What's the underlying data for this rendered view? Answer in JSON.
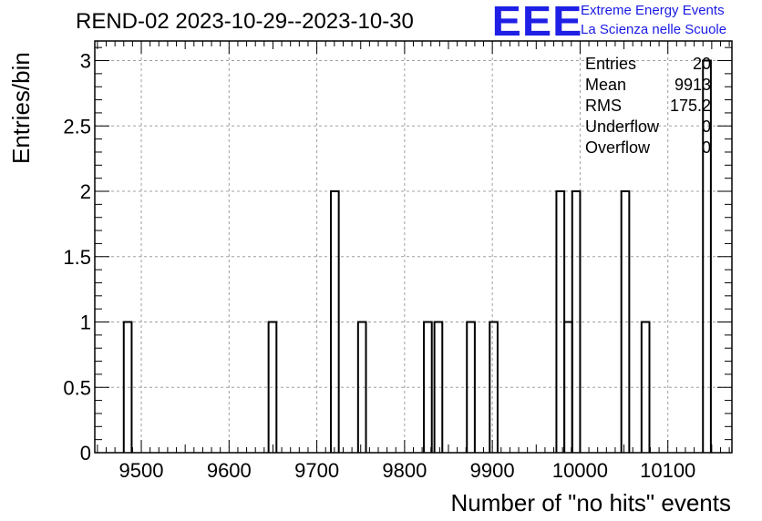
{
  "title": "REND-02 2023-10-29--2023-10-30",
  "logo": {
    "mark": "EEE",
    "line1": "Extreme Energy Events",
    "line2": "La Scienza nelle Scuole",
    "color": "#1f1fe6"
  },
  "stats": [
    {
      "label": "Entries",
      "value": "20"
    },
    {
      "label": "Mean",
      "value": "9913"
    },
    {
      "label": "RMS",
      "value": "175.2"
    },
    {
      "label": "Underflow",
      "value": "0"
    },
    {
      "label": "Overflow",
      "value": "0"
    }
  ],
  "chart_data": {
    "type": "bar",
    "title": "REND-02 2023-10-29--2023-10-30",
    "xlabel": "Number of \"no hits\" events",
    "ylabel": "Entries/bin",
    "xlim": [
      9447,
      10173
    ],
    "ylim": [
      0,
      3.15
    ],
    "grid": true,
    "xticks": [
      "9500",
      "9600",
      "9700",
      "9800",
      "9900",
      "10000",
      "10100"
    ],
    "yticks": [
      "0",
      "0.5",
      "1",
      "1.5",
      "2",
      "2.5",
      "3"
    ],
    "bins": [
      {
        "x0": 9480,
        "x1": 9489,
        "count": 1
      },
      {
        "x0": 9645,
        "x1": 9654,
        "count": 1
      },
      {
        "x0": 9716,
        "x1": 9725,
        "count": 2
      },
      {
        "x0": 9747,
        "x1": 9756,
        "count": 1
      },
      {
        "x0": 9822,
        "x1": 9831,
        "count": 1
      },
      {
        "x0": 9834,
        "x1": 9843,
        "count": 1
      },
      {
        "x0": 9871,
        "x1": 9880,
        "count": 1
      },
      {
        "x0": 9897,
        "x1": 9906,
        "count": 1
      },
      {
        "x0": 9973,
        "x1": 9982,
        "count": 2
      },
      {
        "x0": 9982,
        "x1": 9991,
        "count": 1
      },
      {
        "x0": 9991,
        "x1": 10000,
        "count": 2
      },
      {
        "x0": 10047,
        "x1": 10056,
        "count": 2
      },
      {
        "x0": 10070,
        "x1": 10079,
        "count": 1
      },
      {
        "x0": 10140,
        "x1": 10149,
        "count": 3
      }
    ],
    "line_color": "#000000",
    "grid_color": "#a0a0a0"
  }
}
